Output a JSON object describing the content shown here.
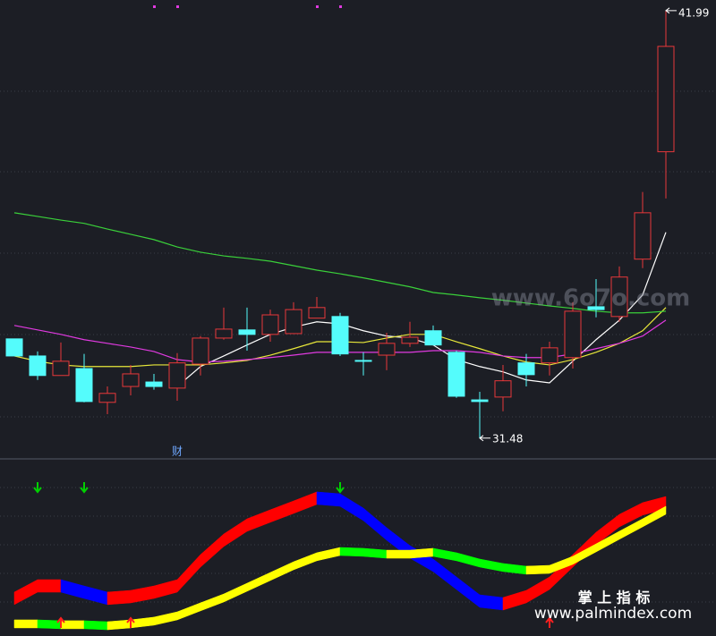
{
  "chart_data": [
    {
      "type": "candlestick",
      "open": [
        33.92,
        33.5,
        33.02,
        33.19,
        32.36,
        32.75,
        32.86,
        32.71,
        33.3,
        33.94,
        34.14,
        34.03,
        34.05,
        34.43,
        34.47,
        33.39,
        33.52,
        33.81,
        34.12,
        33.59,
        32.42,
        32.49,
        33.33,
        33.33,
        33.46,
        34.71,
        34.47,
        35.88,
        38.52
      ],
      "high": [
        33.92,
        33.61,
        33.83,
        33.55,
        32.75,
        33.28,
        33.06,
        33.57,
        33.99,
        34.69,
        34.69,
        34.64,
        34.82,
        34.95,
        34.56,
        33.59,
        34.07,
        34.34,
        34.25,
        33.63,
        32.62,
        33.28,
        33.55,
        33.85,
        34.82,
        35.39,
        35.7,
        37.53,
        41.99
      ],
      "low": [
        33.5,
        32.91,
        33.02,
        32.36,
        32.07,
        32.53,
        32.67,
        32.4,
        33.02,
        33.9,
        33.63,
        33.85,
        34.05,
        34.43,
        33.5,
        33.02,
        33.15,
        33.72,
        33.77,
        32.47,
        31.48,
        32.14,
        32.75,
        33.02,
        33.19,
        34.45,
        34.34,
        35.66,
        37.37
      ],
      "close": [
        33.5,
        33.02,
        33.37,
        32.38,
        32.58,
        33.06,
        32.75,
        33.33,
        33.94,
        34.16,
        34.03,
        34.51,
        34.64,
        34.69,
        33.55,
        33.37,
        33.81,
        33.96,
        33.77,
        32.51,
        32.38,
        32.89,
        33.04,
        33.7,
        34.6,
        34.64,
        35.44,
        37.02,
        41.11
      ],
      "up_color": "#e8383a",
      "down_color": "#54fcfc",
      "ylim": [
        30.97,
        42.25
      ],
      "series": [
        {
          "color": "#ffffff",
          "values": [
            null,
            null,
            null,
            null,
            null,
            null,
            null,
            32.75,
            33.24,
            33.5,
            33.77,
            34.03,
            34.21,
            34.34,
            34.29,
            34.12,
            33.99,
            33.94,
            33.77,
            33.41,
            33.24,
            33.11,
            32.91,
            32.84,
            33.37,
            33.9,
            34.38,
            35.0,
            36.54
          ]
        },
        {
          "color": "#e8e83a",
          "values": [
            33.5,
            33.37,
            33.28,
            33.24,
            33.24,
            33.24,
            33.28,
            33.28,
            33.28,
            33.33,
            33.39,
            33.52,
            33.68,
            33.85,
            33.85,
            33.83,
            33.94,
            34.03,
            34.03,
            33.85,
            33.68,
            33.5,
            33.35,
            33.28,
            33.41,
            33.59,
            33.81,
            34.12,
            34.69
          ]
        },
        {
          "color": "#e03ae0",
          "values": [
            34.25,
            34.14,
            34.03,
            33.9,
            33.81,
            33.72,
            33.61,
            33.41,
            33.35,
            33.37,
            33.41,
            33.46,
            33.52,
            33.59,
            33.59,
            33.59,
            33.59,
            33.59,
            33.63,
            33.63,
            33.59,
            33.5,
            33.46,
            33.46,
            33.55,
            33.68,
            33.81,
            33.99,
            34.38
          ]
        },
        {
          "color": "#3ad03a",
          "values": [
            37.02,
            36.93,
            36.84,
            36.76,
            36.62,
            36.49,
            36.36,
            36.18,
            36.05,
            35.96,
            35.9,
            35.83,
            35.72,
            35.61,
            35.52,
            35.42,
            35.31,
            35.2,
            35.06,
            35.0,
            34.93,
            34.87,
            34.8,
            34.73,
            34.67,
            34.6,
            34.56,
            34.56,
            34.6
          ]
        }
      ],
      "annotation": "财"
    },
    {
      "type": "ribbon",
      "ylim": [
        0,
        100
      ],
      "series": [
        {
          "up_color": "#ff0000",
          "down_color": "#0000ff",
          "values": [
            23.8,
            32.5,
            32.5,
            28.1,
            23.8,
            25.0,
            28.1,
            32.5,
            50.0,
            64.4,
            75.0,
            81.3,
            87.5,
            93.8,
            92.5,
            82.5,
            68.8,
            56.3,
            46.9,
            34.4,
            21.9,
            20.0,
            25.0,
            34.4,
            50.0,
            65.6,
            78.1,
            86.3,
            90.6
          ]
        },
        {
          "up_color": "#ffff00",
          "down_color": "#00ff00",
          "values": [
            4.4,
            4.4,
            3.8,
            3.8,
            3.1,
            4.4,
            6.3,
            10.0,
            16.3,
            22.5,
            30.0,
            37.5,
            45.0,
            51.3,
            55.0,
            54.4,
            53.1,
            53.1,
            54.4,
            51.3,
            46.9,
            43.8,
            41.9,
            42.5,
            48.8,
            57.5,
            66.3,
            75.0,
            83.8
          ]
        }
      ],
      "down_arrows": [
        1,
        3,
        14
      ],
      "down_arrow_color": "#00d000",
      "up_arrows": [
        2,
        5,
        23
      ],
      "up_arrow_color": "#ff2020"
    }
  ],
  "watermarks": [
    "www.6o7o.com",
    "掌 上 指 标",
    "www.palmindex.com"
  ]
}
